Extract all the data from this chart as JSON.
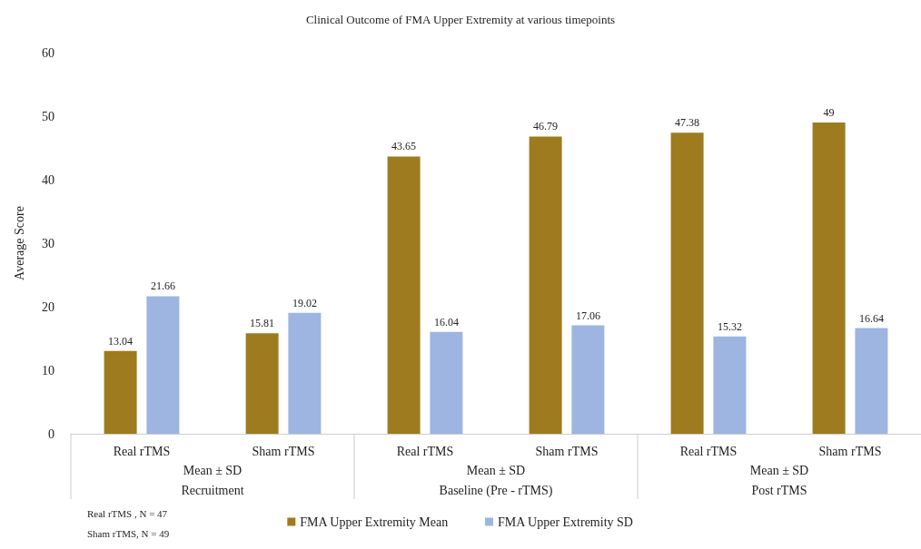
{
  "chart_data": {
    "type": "bar",
    "title": "Clinical Outcome of FMA Upper Extremity at various timepoints",
    "ylabel": "Average Score",
    "categories": [
      "Real rTMS",
      "Sham rTMS",
      "Real rTMS",
      "Sham rTMS",
      "Real rTMS",
      "Sham rTMS"
    ],
    "series": [
      {
        "name": "FMA Upper Extremity Mean",
        "color": "#9e7b1e",
        "values": [
          13.04,
          15.81,
          43.65,
          46.79,
          47.38,
          49
        ]
      },
      {
        "name": "FMA Upper Extremity SD",
        "color": "#9db5e0",
        "values": [
          21.66,
          19.02,
          16.04,
          17.06,
          15.32,
          16.64
        ]
      }
    ],
    "ylim": [
      0,
      60
    ],
    "yticks": [
      0,
      10,
      20,
      30,
      40,
      50,
      60
    ],
    "grid": false,
    "data_labels": true,
    "legend": "bottom",
    "annotations": [
      "Mean ± SD",
      "Recruitment",
      "Mean ± SD",
      "Baseline (Pre - rTMS)",
      "Mean ± SD",
      "Post rTMS",
      "Real rTMS , N = 47",
      "Sham rTMS, N = 49"
    ]
  }
}
